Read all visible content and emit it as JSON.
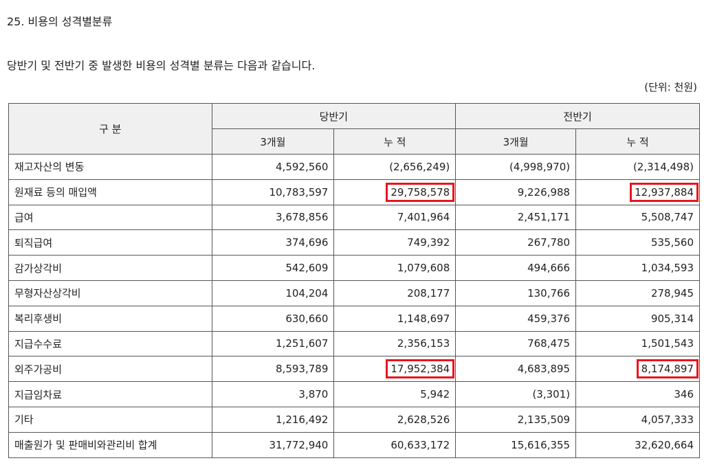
{
  "heading": "25. 비용의 성격별분류",
  "intro": "당반기 및 전반기 중 발생한 비용의 성격별 분류는 다음과 같습니다.",
  "unit": "(단위: 천원)",
  "table": {
    "header": {
      "category": "구 분",
      "groups": [
        "당반기",
        "전반기"
      ],
      "subcolumns": [
        "3개월",
        "누 적",
        "3개월",
        "누 적"
      ]
    },
    "rows": [
      [
        "재고자산의 변동",
        "4,592,560",
        "(2,656,249)",
        "(4,998,970)",
        "(2,314,498)"
      ],
      [
        "원재료 등의 매입액",
        "10,783,597",
        "29,758,578",
        "9,226,988",
        "12,937,884"
      ],
      [
        "급여",
        "3,678,856",
        "7,401,964",
        "2,451,171",
        "5,508,747"
      ],
      [
        "퇴직급여",
        "374,696",
        "749,392",
        "267,780",
        "535,560"
      ],
      [
        "감가상각비",
        "542,609",
        "1,079,608",
        "494,666",
        "1,034,593"
      ],
      [
        "무형자산상각비",
        "104,204",
        "208,177",
        "130,766",
        "278,945"
      ],
      [
        "복리후생비",
        "630,660",
        "1,148,697",
        "459,376",
        "905,314"
      ],
      [
        "지급수수료",
        "1,251,607",
        "2,356,153",
        "768,475",
        "1,501,543"
      ],
      [
        "외주가공비",
        "8,593,789",
        "17,952,384",
        "4,683,895",
        "8,174,897"
      ],
      [
        "지급임차료",
        "3,870",
        "5,942",
        "(3,301)",
        "346"
      ],
      [
        "기타",
        "1,216,492",
        "2,628,526",
        "2,135,509",
        "4,057,333"
      ],
      [
        "매출원가 및 판매비와관리비 합계",
        "31,772,940",
        "60,633,172",
        "15,616,355",
        "32,620,664"
      ]
    ]
  }
}
